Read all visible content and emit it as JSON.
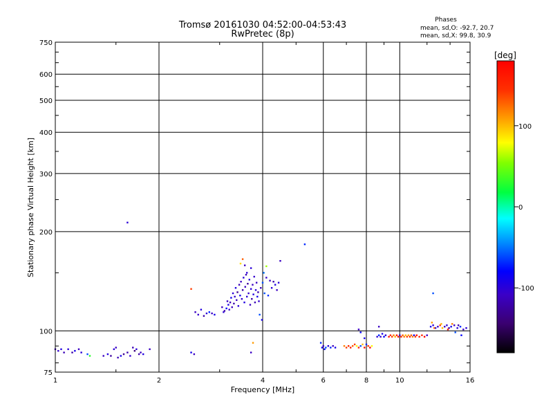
{
  "chart_data": {
    "type": "scatter",
    "title": "Tromsø 20161030 04:52:00-04:53:43",
    "subtitle": "RwPretec (8p)",
    "xlabel": "Frequency [MHz]",
    "ylabel": "Stationary phase Virtual Height [km]",
    "x_scale": "log",
    "y_scale": "log",
    "xlim": [
      1,
      16
    ],
    "ylim": [
      75,
      750
    ],
    "x_ticks": [
      "1",
      "2",
      "4",
      "6",
      "8",
      "10",
      "16"
    ],
    "y_ticks": [
      "75",
      "100",
      "200",
      "300",
      "400",
      "500",
      "600",
      "750"
    ],
    "grid": true,
    "stats": {
      "heading": "Phases",
      "line_o": "mean, sd,O: -92.7, 20.7",
      "line_x": "mean, sd,X:  99.8, 30.9"
    },
    "colorbar": {
      "label": "[deg]",
      "range": [
        -180,
        180
      ],
      "ticks": [
        "100",
        "0",
        "-100"
      ]
    },
    "points": [
      [
        1.0,
        88,
        -110
      ],
      [
        1.02,
        87,
        -105
      ],
      [
        1.04,
        88,
        -95
      ],
      [
        1.06,
        86,
        -115
      ],
      [
        1.09,
        88,
        -100
      ],
      [
        1.12,
        86,
        -120
      ],
      [
        1.14,
        87,
        -90
      ],
      [
        1.17,
        88,
        -110
      ],
      [
        1.19,
        86,
        -100
      ],
      [
        1.24,
        85,
        -60
      ],
      [
        1.26,
        84,
        30
      ],
      [
        1.38,
        84,
        -110
      ],
      [
        1.42,
        85,
        -95
      ],
      [
        1.45,
        84,
        -125
      ],
      [
        1.48,
        88,
        -100
      ],
      [
        1.5,
        89,
        -110
      ],
      [
        1.52,
        83,
        -115
      ],
      [
        1.55,
        84,
        -90
      ],
      [
        1.58,
        85,
        -130
      ],
      [
        1.62,
        86,
        -120
      ],
      [
        1.65,
        84,
        -105
      ],
      [
        1.68,
        89,
        -115
      ],
      [
        1.7,
        87,
        -140
      ],
      [
        1.72,
        88,
        -100
      ],
      [
        1.75,
        85,
        -120
      ],
      [
        1.77,
        86,
        -110
      ],
      [
        1.8,
        85,
        -95
      ],
      [
        1.88,
        88,
        -110
      ],
      [
        1.62,
        213,
        -100
      ],
      [
        2.48,
        86,
        -90
      ],
      [
        2.53,
        85,
        -110
      ],
      [
        2.48,
        134,
        140
      ],
      [
        2.55,
        114,
        -110
      ],
      [
        2.6,
        112,
        -105
      ],
      [
        2.65,
        116,
        -95
      ],
      [
        2.7,
        111,
        -120
      ],
      [
        2.75,
        113,
        -100
      ],
      [
        2.8,
        114,
        -70
      ],
      [
        2.85,
        113,
        -110
      ],
      [
        2.9,
        112,
        -90
      ],
      [
        3.05,
        118,
        -110
      ],
      [
        3.08,
        114,
        -100
      ],
      [
        3.1,
        115,
        -120
      ],
      [
        3.14,
        117,
        -80
      ],
      [
        3.16,
        123,
        -110
      ],
      [
        3.18,
        120,
        -95
      ],
      [
        3.2,
        116,
        -105
      ],
      [
        3.22,
        122,
        -115
      ],
      [
        3.24,
        126,
        -90
      ],
      [
        3.26,
        118,
        -110
      ],
      [
        3.28,
        130,
        -100
      ],
      [
        3.3,
        121,
        -120
      ],
      [
        3.32,
        127,
        -105
      ],
      [
        3.34,
        135,
        -95
      ],
      [
        3.36,
        124,
        -110
      ],
      [
        3.38,
        131,
        -130
      ],
      [
        3.4,
        119,
        -100
      ],
      [
        3.42,
        138,
        -115
      ],
      [
        3.44,
        128,
        -90
      ],
      [
        3.46,
        141,
        -110
      ],
      [
        3.48,
        125,
        -105
      ],
      [
        3.5,
        133,
        -120
      ],
      [
        3.52,
        145,
        -100
      ],
      [
        3.54,
        122,
        -95
      ],
      [
        3.56,
        136,
        -110
      ],
      [
        3.58,
        148,
        -115
      ],
      [
        3.6,
        127,
        -100
      ],
      [
        3.62,
        139,
        -125
      ],
      [
        3.64,
        130,
        -105
      ],
      [
        3.66,
        143,
        -95
      ],
      [
        3.68,
        120,
        -110
      ],
      [
        3.7,
        134,
        -100
      ],
      [
        3.72,
        125,
        -120
      ],
      [
        3.74,
        138,
        -110
      ],
      [
        3.76,
        129,
        -95
      ],
      [
        3.78,
        146,
        -105
      ],
      [
        3.8,
        122,
        -115
      ],
      [
        3.82,
        133,
        -100
      ],
      [
        3.84,
        140,
        -110
      ],
      [
        3.86,
        127,
        -90
      ],
      [
        3.88,
        131,
        -120
      ],
      [
        3.9,
        123,
        -105
      ],
      [
        3.5,
        165,
        130
      ],
      [
        3.55,
        158,
        -110
      ],
      [
        3.6,
        150,
        -100
      ],
      [
        3.45,
        160,
        90
      ],
      [
        3.7,
        155,
        -100
      ],
      [
        3.95,
        135,
        -110
      ],
      [
        4.0,
        140,
        -60
      ],
      [
        4.05,
        130,
        -60
      ],
      [
        4.1,
        145,
        -105
      ],
      [
        4.15,
        128,
        -70
      ],
      [
        4.2,
        142,
        -110
      ],
      [
        4.25,
        135,
        -100
      ],
      [
        4.3,
        141,
        -120
      ],
      [
        4.35,
        138,
        -95
      ],
      [
        4.4,
        133,
        -110
      ],
      [
        4.45,
        140,
        -100
      ],
      [
        4.5,
        163,
        -110
      ],
      [
        4.03,
        150,
        -50
      ],
      [
        4.1,
        157,
        60
      ],
      [
        3.98,
        108,
        -90
      ],
      [
        3.92,
        112,
        -60
      ],
      [
        3.75,
        92,
        110
      ],
      [
        3.7,
        86,
        -110
      ],
      [
        5.3,
        183,
        -70
      ],
      [
        5.9,
        92,
        -70
      ],
      [
        5.95,
        89,
        -90
      ],
      [
        6.0,
        90,
        -110
      ],
      [
        6.05,
        88,
        -80
      ],
      [
        6.1,
        89,
        -60
      ],
      [
        6.2,
        90,
        -100
      ],
      [
        6.3,
        89,
        -70
      ],
      [
        6.4,
        90,
        -110
      ],
      [
        6.5,
        89,
        -90
      ],
      [
        6.9,
        90,
        120
      ],
      [
        7.0,
        89,
        140
      ],
      [
        7.1,
        90,
        150
      ],
      [
        7.2,
        89,
        160
      ],
      [
        7.3,
        90,
        130
      ],
      [
        7.4,
        91,
        140
      ],
      [
        7.5,
        90,
        80
      ],
      [
        7.6,
        89,
        150
      ],
      [
        7.7,
        90,
        -60
      ],
      [
        7.8,
        91,
        100
      ],
      [
        7.9,
        89,
        170
      ],
      [
        7.9,
        95,
        -90
      ],
      [
        8.0,
        91,
        -70
      ],
      [
        8.1,
        90,
        140
      ],
      [
        8.2,
        89,
        170
      ],
      [
        8.3,
        90,
        80
      ],
      [
        7.6,
        101,
        -110
      ],
      [
        7.7,
        99,
        -80
      ],
      [
        8.6,
        96,
        -100
      ],
      [
        8.7,
        97,
        -70
      ],
      [
        8.8,
        96,
        -110
      ],
      [
        8.9,
        98,
        -90
      ],
      [
        9.0,
        96,
        -80
      ],
      [
        9.1,
        97,
        -100
      ],
      [
        8.7,
        103,
        -110
      ],
      [
        9.3,
        96,
        170
      ],
      [
        9.4,
        97,
        150
      ],
      [
        9.5,
        96,
        140
      ],
      [
        9.6,
        97,
        120
      ],
      [
        9.7,
        96,
        100
      ],
      [
        9.8,
        97,
        160
      ],
      [
        9.9,
        96,
        170
      ],
      [
        10.0,
        97,
        -110
      ],
      [
        10.1,
        96,
        150
      ],
      [
        10.2,
        97,
        130
      ],
      [
        10.3,
        96,
        120
      ],
      [
        10.4,
        97,
        100
      ],
      [
        10.5,
        96,
        140
      ],
      [
        10.6,
        97,
        110
      ],
      [
        10.7,
        96,
        150
      ],
      [
        10.8,
        97,
        130
      ],
      [
        10.9,
        96,
        120
      ],
      [
        11.0,
        97,
        -90
      ],
      [
        11.1,
        96,
        140
      ],
      [
        11.2,
        97,
        170
      ],
      [
        11.4,
        96,
        160
      ],
      [
        11.6,
        97,
        150
      ],
      [
        11.8,
        96,
        180
      ],
      [
        12.0,
        97,
        -110
      ],
      [
        12.3,
        103,
        -90
      ],
      [
        12.5,
        104,
        -100
      ],
      [
        12.7,
        102,
        -80
      ],
      [
        12.9,
        103,
        -110
      ],
      [
        13.1,
        104,
        140
      ],
      [
        13.3,
        102,
        100
      ],
      [
        13.5,
        103,
        -110
      ],
      [
        13.7,
        104,
        -100
      ],
      [
        13.9,
        102,
        -120
      ],
      [
        14.1,
        103,
        -90
      ],
      [
        14.4,
        104,
        -110
      ],
      [
        14.7,
        102,
        -100
      ],
      [
        15.0,
        103,
        -70
      ],
      [
        15.3,
        101,
        -110
      ],
      [
        15.6,
        102,
        -100
      ],
      [
        12.5,
        130,
        -60
      ],
      [
        12.6,
        102,
        130
      ],
      [
        13.2,
        105,
        100
      ],
      [
        14.5,
        99,
        -60
      ],
      [
        15.1,
        97,
        -80
      ],
      [
        14.2,
        105,
        120
      ],
      [
        12.4,
        106,
        110
      ],
      [
        13.8,
        101,
        160
      ],
      [
        14.8,
        104,
        -120
      ]
    ]
  }
}
